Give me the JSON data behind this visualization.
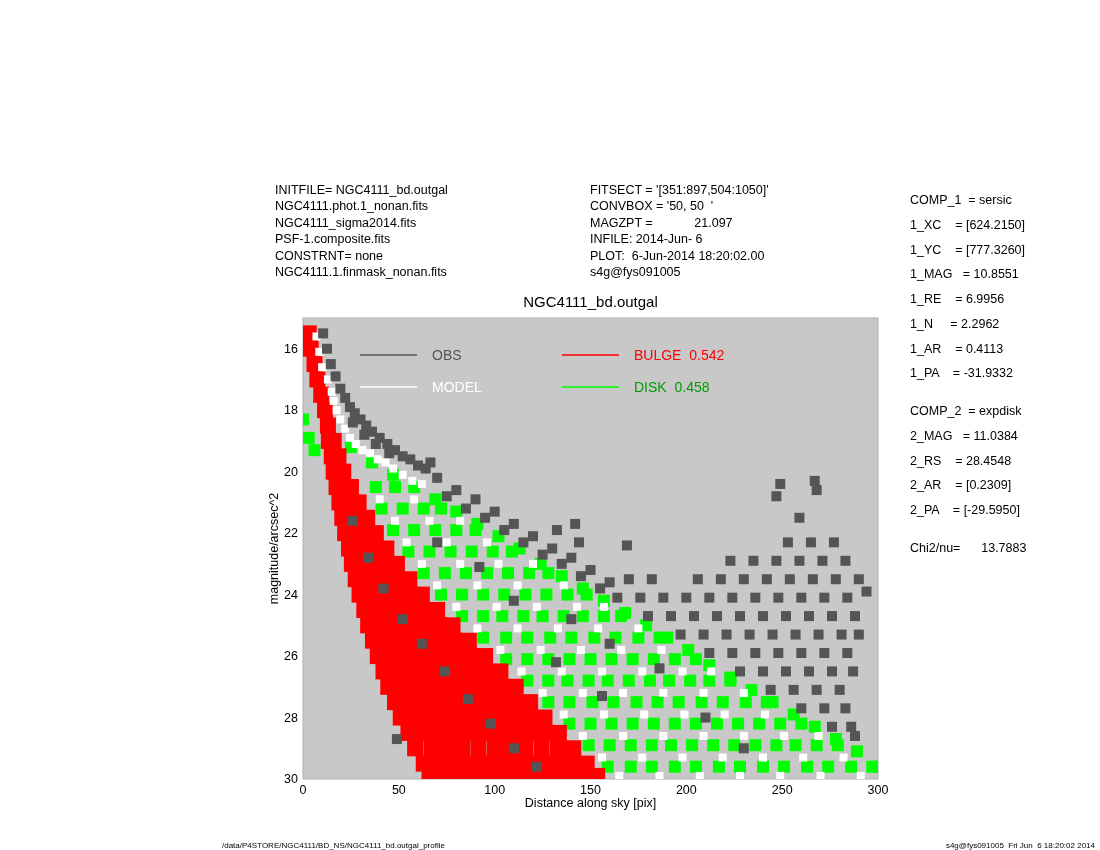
{
  "chart_data": {
    "type": "scatter",
    "title": "NGC4111_bd.outgal",
    "xlabel": "Distance along sky [pix]",
    "ylabel": "magnitude/arcsec^2",
    "xlim": [
      0,
      300
    ],
    "ylim": [
      30,
      15
    ],
    "xticks": [
      0,
      50,
      100,
      150,
      200,
      250,
      300
    ],
    "yticks": [
      16,
      18,
      20,
      22,
      24,
      26,
      28,
      30
    ],
    "marker": "square",
    "legend": "top",
    "annotations": [
      "INITFILE= NGC4111_bd.outgal",
      "NGC4111.phot.1_nonan.fits",
      "NGC4111_sigma2014.fits",
      "PSF-1.composite.fits",
      "CONSTRNT= none",
      "NGC4111.1.finmask_nonan.fits",
      "FITSECT = '[351:897,504:1050]'",
      "CONVBOX = '50, 50  '",
      "MAGZPT =            21.097",
      "INFILE: 2014-Jun- 6",
      "PLOT:  6-Jun-2014 18:20:02.00",
      "s4g@fys091005",
      "COMP_1  = sersic",
      "1_XC    = [624.2150]",
      "1_YC    = [777.3260]",
      "1_MAG   = 10.8551",
      "1_RE    = 6.9956",
      "1_N     = 2.2962",
      "1_AR    = 0.4113",
      "1_PA    = -31.9332",
      "COMP_2  = expdisk",
      "2_MAG   = 11.0384",
      "2_RS    = 28.4548",
      "2_AR    = [0.2309]",
      "2_PA    = [-29.5950]",
      "Chi2/nu=      13.7883",
      "/data/P4STORE/NGC4111/BD_NS/NGC4111_bd.outgal_profile",
      "s4g@fys091005  Fri Jun  6 18:20:02 2014"
    ],
    "series": [
      {
        "name": "OBS",
        "color": "#555555",
        "x": [
          10.5,
          12.5,
          14.5,
          17,
          19.5,
          22,
          24.5,
          27,
          30,
          33,
          36,
          40,
          44,
          48,
          52,
          56,
          60,
          64,
          66.5,
          26,
          32,
          38,
          45,
          70,
          80,
          90,
          100,
          110,
          120,
          130,
          140,
          150,
          160,
          75,
          85,
          95,
          105,
          115,
          125,
          135,
          145,
          155,
          132.5,
          142,
          144,
          169,
          253,
          265,
          277,
          223,
          235,
          247,
          259,
          271,
          283,
          170,
          182,
          206,
          218,
          230,
          242,
          254,
          266,
          278,
          290,
          164,
          176,
          188,
          200,
          212,
          224,
          236,
          248,
          260,
          272,
          284,
          180,
          192,
          204,
          216,
          228,
          240,
          252,
          264,
          276,
          288,
          197,
          209,
          221,
          233,
          245,
          257,
          269,
          281,
          290,
          212,
          224,
          236,
          248,
          260,
          272,
          284,
          228,
          240,
          252,
          264,
          276,
          287,
          244,
          256,
          268,
          280,
          260,
          272,
          283,
          276,
          286,
          288,
          26,
          34,
          42,
          52,
          62,
          74,
          86,
          98,
          110,
          122,
          49,
          70,
          92,
          110,
          140,
          160,
          132,
          186,
          156,
          210,
          230,
          247,
          249,
          267,
          268,
          259,
          294
        ],
        "values": [
          15.5,
          16,
          16.5,
          16.9,
          17.3,
          17.6,
          17.9,
          18.1,
          18.3,
          18.5,
          18.7,
          18.9,
          19.1,
          19.3,
          19.5,
          19.6,
          19.8,
          19.9,
          19.7,
          18.4,
          18.8,
          19.1,
          19.4,
          20.2,
          20.6,
          20.9,
          21.3,
          21.7,
          22.1,
          22.5,
          22.8,
          23.2,
          23.6,
          20.8,
          21.2,
          21.5,
          21.9,
          22.3,
          22.7,
          23,
          23.4,
          23.8,
          21.9,
          21.7,
          22.3,
          22.4,
          22.3,
          22.3,
          22.3,
          22.9,
          22.9,
          22.9,
          22.9,
          22.9,
          22.9,
          23.5,
          23.5,
          23.5,
          23.5,
          23.5,
          23.5,
          23.5,
          23.5,
          23.5,
          23.5,
          24.1,
          24.1,
          24.1,
          24.1,
          24.1,
          24.1,
          24.1,
          24.1,
          24.1,
          24.1,
          24.1,
          24.7,
          24.7,
          24.7,
          24.7,
          24.7,
          24.7,
          24.7,
          24.7,
          24.7,
          24.7,
          25.3,
          25.3,
          25.3,
          25.3,
          25.3,
          25.3,
          25.3,
          25.3,
          25.3,
          25.9,
          25.9,
          25.9,
          25.9,
          25.9,
          25.9,
          25.9,
          26.5,
          26.5,
          26.5,
          26.5,
          26.5,
          26.5,
          27.1,
          27.1,
          27.1,
          27.1,
          27.7,
          27.7,
          27.7,
          28.3,
          28.3,
          28.6,
          21.6,
          22.8,
          23.8,
          24.8,
          25.6,
          26.5,
          27.4,
          28.2,
          29,
          29.6,
          28.7,
          22.3,
          23.1,
          24.2,
          24.8,
          25.6,
          26.2,
          26.4,
          27.3,
          28,
          29,
          20.8,
          20.4,
          20.3,
          20.6,
          21.5,
          23.9
        ]
      },
      {
        "name": "MODEL",
        "color": "#ffffff",
        "x": [
          7,
          8.5,
          10,
          13,
          15,
          16,
          17.5,
          19.5,
          22,
          24.5,
          27.5,
          31,
          35,
          39,
          43,
          47,
          52,
          57,
          62,
          40,
          58,
          48,
          66,
          82,
          54,
          75,
          96,
          62,
          82,
          102,
          120,
          70,
          91,
          112,
          136,
          80,
          101,
          122,
          143,
          157,
          91,
          112,
          133,
          154,
          175,
          103,
          124,
          145,
          166,
          187,
          114,
          135,
          156,
          177,
          198,
          213,
          125,
          146,
          167,
          188,
          209,
          230,
          136,
          157,
          178,
          199,
          220,
          241,
          146,
          167,
          188,
          209,
          230,
          251,
          269,
          156,
          177,
          198,
          219,
          240,
          261,
          282,
          165,
          186,
          207,
          228,
          249,
          270,
          291
        ],
        "values": [
          15.6,
          16.1,
          16.6,
          17,
          17.4,
          17.7,
          18,
          18.3,
          18.6,
          18.9,
          19.1,
          19.3,
          19.4,
          19.6,
          19.7,
          19.9,
          20.1,
          20.3,
          20.4,
          20.9,
          20.9,
          21.6,
          21.6,
          21.6,
          22.3,
          22.3,
          22.3,
          23,
          23,
          23,
          23,
          23.7,
          23.7,
          23.7,
          23.7,
          24.4,
          24.4,
          24.4,
          24.4,
          24.4,
          25.1,
          25.1,
          25.1,
          25.1,
          25.1,
          25.8,
          25.8,
          25.8,
          25.8,
          25.8,
          26.5,
          26.5,
          26.5,
          26.5,
          26.5,
          26.5,
          27.2,
          27.2,
          27.2,
          27.2,
          27.2,
          27.2,
          27.9,
          27.9,
          27.9,
          27.9,
          27.9,
          27.9,
          28.6,
          28.6,
          28.6,
          28.6,
          28.6,
          28.6,
          28.6,
          29.3,
          29.3,
          29.3,
          29.3,
          29.3,
          29.3,
          29.3,
          29.9,
          29.9,
          29.9,
          29.9,
          29.9,
          29.9,
          29.9
        ]
      },
      {
        "name": "BULGE  0.542",
        "color": "#ff0000",
        "x": [
          3,
          4,
          6,
          7.5,
          9.5,
          11.5,
          13,
          13.5,
          16,
          15,
          18.5,
          16,
          21,
          17.5,
          25,
          19,
          24,
          29,
          20.5,
          27,
          33.5,
          22,
          27,
          33,
          38,
          24,
          30,
          37,
          43.5,
          25.5,
          31,
          37,
          43,
          49,
          27.5,
          34.5,
          41.5,
          48.5,
          55.5,
          29.5,
          36,
          42.5,
          49,
          55.5,
          62,
          32,
          38,
          44,
          51,
          57,
          63,
          70,
          34,
          41,
          49,
          56,
          63,
          71,
          78,
          36.5,
          44,
          51,
          58,
          65,
          72,
          79,
          86.5,
          39,
          46,
          53,
          60,
          67,
          74,
          81,
          88,
          95,
          42,
          49,
          57,
          65,
          72,
          80,
          88,
          95,
          103,
          44.5,
          52,
          59,
          67,
          74,
          81,
          89,
          96,
          104,
          111,
          48,
          56,
          63,
          71,
          79,
          87,
          95,
          103,
          111,
          118.5,
          51,
          58.5,
          66,
          73.5,
          81,
          88.5,
          96,
          103.5,
          111,
          118.5,
          126,
          55,
          63,
          70.5,
          78,
          86,
          94,
          102,
          110,
          118,
          126,
          133.5,
          58.5,
          67,
          75,
          83,
          91.5,
          100,
          108,
          116,
          124.5,
          133,
          141,
          63,
          70.5,
          78,
          86,
          94,
          101.5,
          109,
          117,
          125,
          132.5,
          140,
          148,
          66,
          74,
          82,
          90,
          98,
          106,
          114,
          122,
          130,
          138,
          145.5,
          153.5
        ],
        "values": [
          15.5,
          16,
          16.5,
          17,
          17.5,
          18,
          18.5,
          19,
          19,
          19.5,
          19.5,
          20,
          20,
          20.5,
          20.5,
          21,
          21,
          21,
          21.5,
          21.5,
          21.5,
          22,
          22,
          22,
          22,
          22.5,
          22.5,
          22.5,
          22.5,
          23,
          23,
          23,
          23,
          23,
          23.5,
          23.5,
          23.5,
          23.5,
          23.5,
          24,
          24,
          24,
          24,
          24,
          24,
          24.5,
          24.5,
          24.5,
          24.5,
          24.5,
          24.5,
          24.5,
          25,
          25,
          25,
          25,
          25,
          25,
          25,
          25.5,
          25.5,
          25.5,
          25.5,
          25.5,
          25.5,
          25.5,
          25.5,
          26,
          26,
          26,
          26,
          26,
          26,
          26,
          26,
          26,
          26.5,
          26.5,
          26.5,
          26.5,
          26.5,
          26.5,
          26.5,
          26.5,
          26.5,
          27,
          27,
          27,
          27,
          27,
          27,
          27,
          27,
          27,
          27,
          27.5,
          27.5,
          27.5,
          27.5,
          27.5,
          27.5,
          27.5,
          27.5,
          27.5,
          27.5,
          28,
          28,
          28,
          28,
          28,
          28,
          28,
          28,
          28,
          28,
          28,
          28.5,
          28.5,
          28.5,
          28.5,
          28.5,
          28.5,
          28.5,
          28.5,
          28.5,
          28.5,
          28.5,
          29,
          29,
          29,
          29,
          29,
          29,
          29,
          29,
          29,
          29,
          29,
          29.5,
          29.5,
          29.5,
          29.5,
          29.5,
          29.5,
          29.5,
          29.5,
          29.5,
          29.5,
          29.5,
          29.5,
          29.9,
          29.9,
          29.9,
          29.9,
          29.9,
          29.9,
          29.9,
          29.9,
          29.9,
          29.9,
          29.9,
          29.9
        ]
      },
      {
        "name": "DISK  0.458",
        "color": "#00ff00",
        "x": [
          3,
          6,
          0,
          25,
          36,
          47,
          58,
          69,
          80,
          91,
          102,
          113,
          124,
          135,
          146,
          157,
          168,
          179,
          190,
          201,
          212,
          223,
          234,
          245,
          256,
          267,
          278,
          289,
          300,
          38,
          48,
          41,
          52,
          63,
          72,
          47,
          58,
          69,
          80,
          90,
          55,
          66,
          77,
          88,
          99,
          109,
          63,
          74,
          85,
          96,
          107,
          118,
          128,
          72,
          83,
          94,
          105,
          116,
          127,
          138,
          148,
          83,
          94,
          104,
          115,
          125,
          136,
          146,
          157,
          166,
          94,
          106,
          117,
          129,
          140,
          152,
          163,
          175,
          186,
          106,
          117,
          128,
          139,
          150,
          161,
          172,
          183,
          194,
          205,
          117,
          128,
          138,
          149,
          159,
          170,
          181,
          191,
          202,
          212,
          223,
          128,
          139,
          151,
          162,
          174,
          185,
          196,
          208,
          219,
          231,
          242,
          139,
          150,
          161,
          172,
          183,
          194,
          205,
          216,
          227,
          238,
          249,
          260,
          149,
          160,
          171,
          182,
          192,
          203,
          214,
          225,
          236,
          247,
          257,
          268,
          279,
          159,
          171,
          182,
          194,
          205,
          217,
          228,
          240,
          251,
          263,
          274,
          286,
          297
        ],
        "values": [
          18.9,
          19.3,
          18.3,
          19.2,
          19.7,
          20.1,
          20.5,
          20.9,
          21.3,
          21.7,
          22.1,
          22.5,
          23,
          23.4,
          23.8,
          24.2,
          24.6,
          25,
          25.4,
          25.8,
          26.3,
          26.7,
          27.1,
          27.5,
          27.9,
          28.3,
          28.7,
          29.1,
          29.6,
          20.5,
          20.5,
          21.2,
          21.2,
          21.2,
          21.2,
          21.9,
          21.9,
          21.9,
          21.9,
          21.9,
          22.6,
          22.6,
          22.6,
          22.6,
          22.6,
          22.6,
          23.3,
          23.3,
          23.3,
          23.3,
          23.3,
          23.3,
          23.3,
          24,
          24,
          24,
          24,
          24,
          24,
          24,
          24,
          24.7,
          24.7,
          24.7,
          24.7,
          24.7,
          24.7,
          24.7,
          24.7,
          24.7,
          25.4,
          25.4,
          25.4,
          25.4,
          25.4,
          25.4,
          25.4,
          25.4,
          25.4,
          26.1,
          26.1,
          26.1,
          26.1,
          26.1,
          26.1,
          26.1,
          26.1,
          26.1,
          26.1,
          26.8,
          26.8,
          26.8,
          26.8,
          26.8,
          26.8,
          26.8,
          26.8,
          26.8,
          26.8,
          26.8,
          27.5,
          27.5,
          27.5,
          27.5,
          27.5,
          27.5,
          27.5,
          27.5,
          27.5,
          27.5,
          27.5,
          28.2,
          28.2,
          28.2,
          28.2,
          28.2,
          28.2,
          28.2,
          28.2,
          28.2,
          28.2,
          28.2,
          28.2,
          28.9,
          28.9,
          28.9,
          28.9,
          28.9,
          28.9,
          28.9,
          28.9,
          28.9,
          28.9,
          28.9,
          28.9,
          28.9,
          29.6,
          29.6,
          29.6,
          29.6,
          29.6,
          29.6,
          29.6,
          29.6,
          29.6,
          29.6,
          29.6,
          29.6,
          29.6
        ]
      }
    ]
  }
}
